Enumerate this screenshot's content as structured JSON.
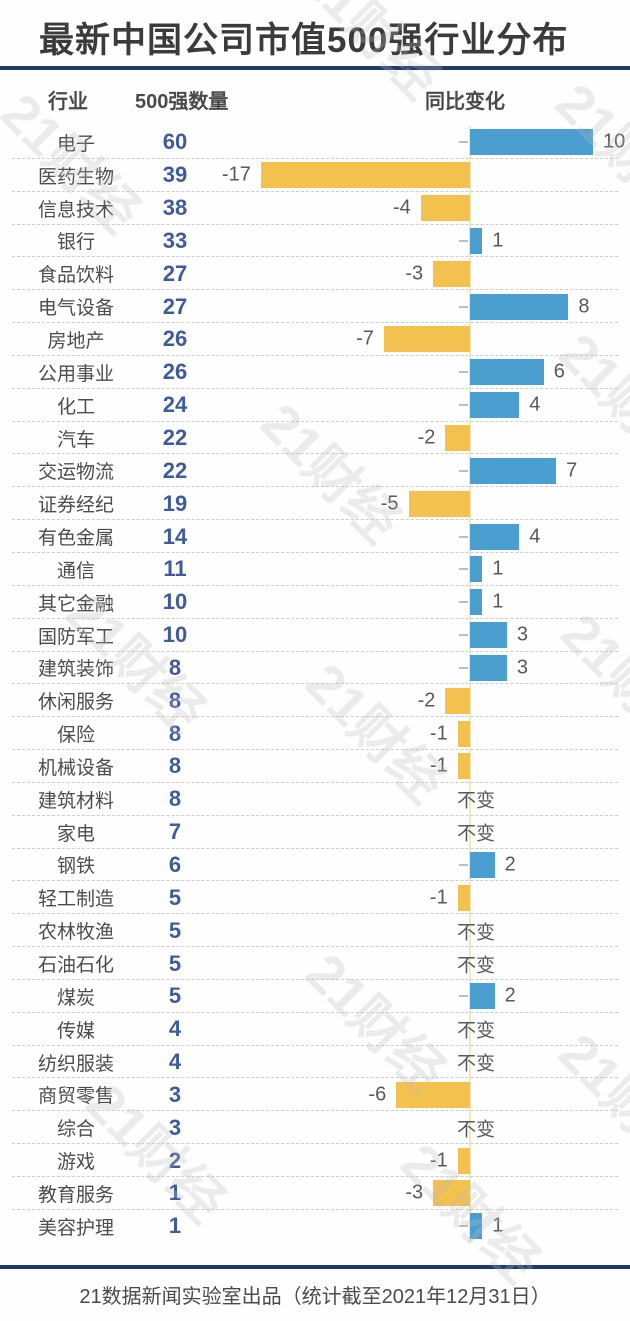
{
  "title": "最新中国公司市值500强行业分布",
  "columns": {
    "industry": "行业",
    "count": "500强数量",
    "change": "同比变化"
  },
  "footer": "21数据新闻实验室出品（统计截至2021年12月31日）",
  "watermark_text": "21财经",
  "zero_change_label": "不变",
  "colors": {
    "accent_rule": "#1f3a68",
    "positive_bar": "#4b9fd0",
    "negative_bar": "#f2c14e",
    "count_text": "#3e5c9a",
    "axis_line": "#f3e7c0",
    "title_text": "#3b3b3b",
    "industry_text": "#4d4d4d",
    "change_text": "#58595b"
  },
  "chart_data": {
    "type": "bar",
    "orientation": "horizontal-diverging",
    "title": "最新中国公司市值500强行业分布",
    "value_columns": [
      "500强数量",
      "同比变化"
    ],
    "zero_label": "不变",
    "change_range": [
      -17,
      10
    ],
    "legend": "none",
    "categories": [
      "电子",
      "医药生物",
      "信息技术",
      "银行",
      "食品饮料",
      "电气设备",
      "房地产",
      "公用事业",
      "化工",
      "汽车",
      "交运物流",
      "证券经纪",
      "有色金属",
      "通信",
      "其它金融",
      "国防军工",
      "建筑装饰",
      "休闲服务",
      "保险",
      "机械设备",
      "建筑材料",
      "家电",
      "钢铁",
      "轻工制造",
      "农林牧渔",
      "石油石化",
      "煤炭",
      "传媒",
      "纺织服装",
      "商贸零售",
      "综合",
      "游戏",
      "教育服务",
      "美容护理"
    ],
    "series": [
      {
        "name": "500强数量",
        "values": [
          60,
          39,
          38,
          33,
          27,
          27,
          26,
          26,
          24,
          22,
          22,
          19,
          14,
          11,
          10,
          10,
          8,
          8,
          8,
          8,
          8,
          7,
          6,
          5,
          5,
          5,
          5,
          4,
          4,
          3,
          3,
          2,
          1,
          1
        ]
      },
      {
        "name": "同比变化",
        "values": [
          10,
          -17,
          -4,
          1,
          -3,
          8,
          -7,
          6,
          4,
          -2,
          7,
          -5,
          4,
          1,
          1,
          3,
          3,
          -2,
          -1,
          -1,
          0,
          0,
          2,
          -1,
          0,
          0,
          2,
          0,
          0,
          -6,
          0,
          -1,
          -3,
          1
        ]
      }
    ]
  }
}
